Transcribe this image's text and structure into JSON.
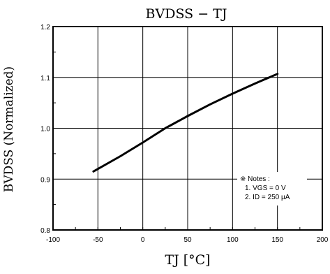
{
  "chart_data": {
    "type": "line",
    "title": "BVDSS − TJ",
    "xlabel": "TJ [°C]",
    "ylabel": "BVDSS (Normalized)",
    "xlim": [
      -100,
      200
    ],
    "ylim": [
      0.8,
      1.2
    ],
    "grid": true,
    "x_ticks": [
      "-100",
      "-50",
      "0",
      "50",
      "100",
      "150",
      "200"
    ],
    "y_ticks": [
      "0.8",
      "0.9",
      "1.0",
      "1.1",
      "1.2"
    ],
    "series": [
      {
        "x": [
          -55,
          -25,
          0,
          25,
          50,
          75,
          100,
          125,
          150
        ],
        "y": [
          0.915,
          0.945,
          0.972,
          1.0,
          1.024,
          1.047,
          1.068,
          1.088,
          1.107
        ]
      }
    ],
    "notes": {
      "title": "※ Notes :",
      "line1": "1. VGS = 0 V",
      "line2": "2. ID = 250 μA"
    },
    "colors": {
      "line": "#000000",
      "grid": "#000000",
      "background": "#ffffff"
    }
  }
}
